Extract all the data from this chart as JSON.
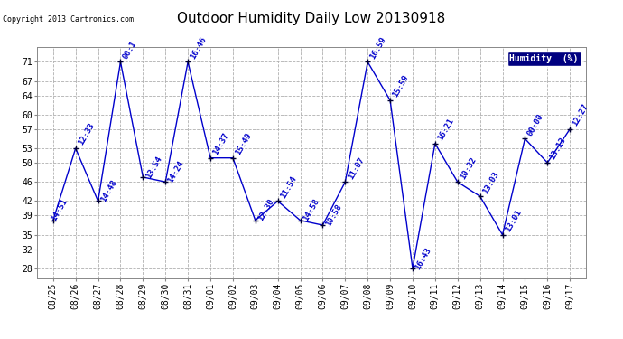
{
  "title": "Outdoor Humidity Daily Low 20130918",
  "copyright": "Copyright 2013 Cartronics.com",
  "bg_color": "#ffffff",
  "plot_bg_color": "#ffffff",
  "grid_color": "#b0b0b0",
  "line_color": "#0000cc",
  "marker_color": "#000033",
  "text_color": "#0000cc",
  "legend_bg": "#000080",
  "legend_text": "Humidity  (%)",
  "dates": [
    "08/25",
    "08/26",
    "08/27",
    "08/28",
    "08/29",
    "08/30",
    "08/31",
    "09/01",
    "09/02",
    "09/03",
    "09/04",
    "09/05",
    "09/06",
    "09/07",
    "09/08",
    "09/09",
    "09/10",
    "09/11",
    "09/12",
    "09/13",
    "09/14",
    "09/15",
    "09/16",
    "09/17"
  ],
  "values": [
    38,
    53,
    42,
    71,
    47,
    46,
    71,
    51,
    51,
    38,
    42,
    38,
    37,
    46,
    71,
    63,
    28,
    54,
    46,
    43,
    35,
    55,
    50,
    57
  ],
  "labels": [
    "14:51",
    "12:33",
    "14:48",
    "00:1",
    "13:54",
    "14:24",
    "16:46",
    "14:37",
    "15:49",
    "12:30",
    "11:54",
    "14:58",
    "10:58",
    "11:07",
    "16:59",
    "15:59",
    "16:43",
    "16:21",
    "10:32",
    "13:03",
    "13:01",
    "00:00",
    "13:13",
    "12:27"
  ],
  "ylim": [
    26,
    74
  ],
  "yticks": [
    28,
    32,
    35,
    39,
    42,
    46,
    50,
    53,
    57,
    60,
    64,
    67,
    71
  ],
  "title_fontsize": 11,
  "label_fontsize": 6.5,
  "axis_fontsize": 7,
  "copyright_fontsize": 6
}
